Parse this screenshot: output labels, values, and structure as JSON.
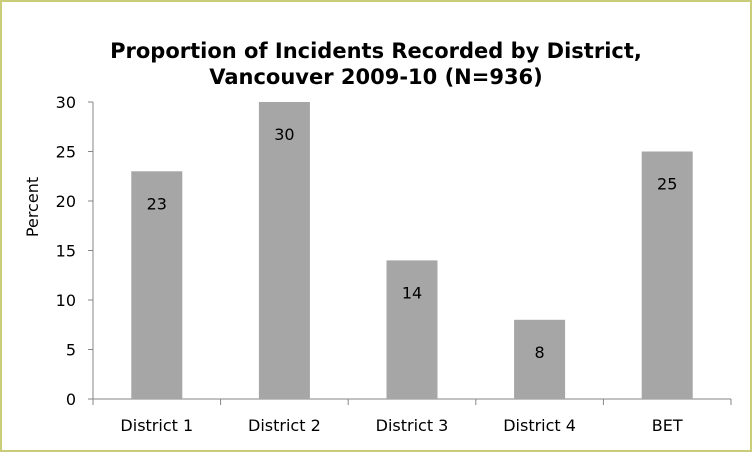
{
  "chart_data": {
    "type": "bar",
    "title_lines": [
      "Proportion of Incidents Recorded by District,",
      "Vancouver 2009-10 (N=936)"
    ],
    "xlabel": "",
    "ylabel": "Percent",
    "categories": [
      "District 1",
      "District 2",
      "District 3",
      "District 4",
      "BET"
    ],
    "values": [
      23,
      30,
      14,
      8,
      25
    ],
    "data_labels": [
      "23",
      "30",
      "14",
      "8",
      "25"
    ],
    "ylim": [
      0,
      30
    ],
    "yticks": [
      0,
      5,
      10,
      15,
      20,
      25,
      30
    ],
    "grid": false,
    "legend": "none",
    "bar_color": "#a6a6a6",
    "axis_color": "#868686",
    "border_color": "#c9cd7a"
  }
}
